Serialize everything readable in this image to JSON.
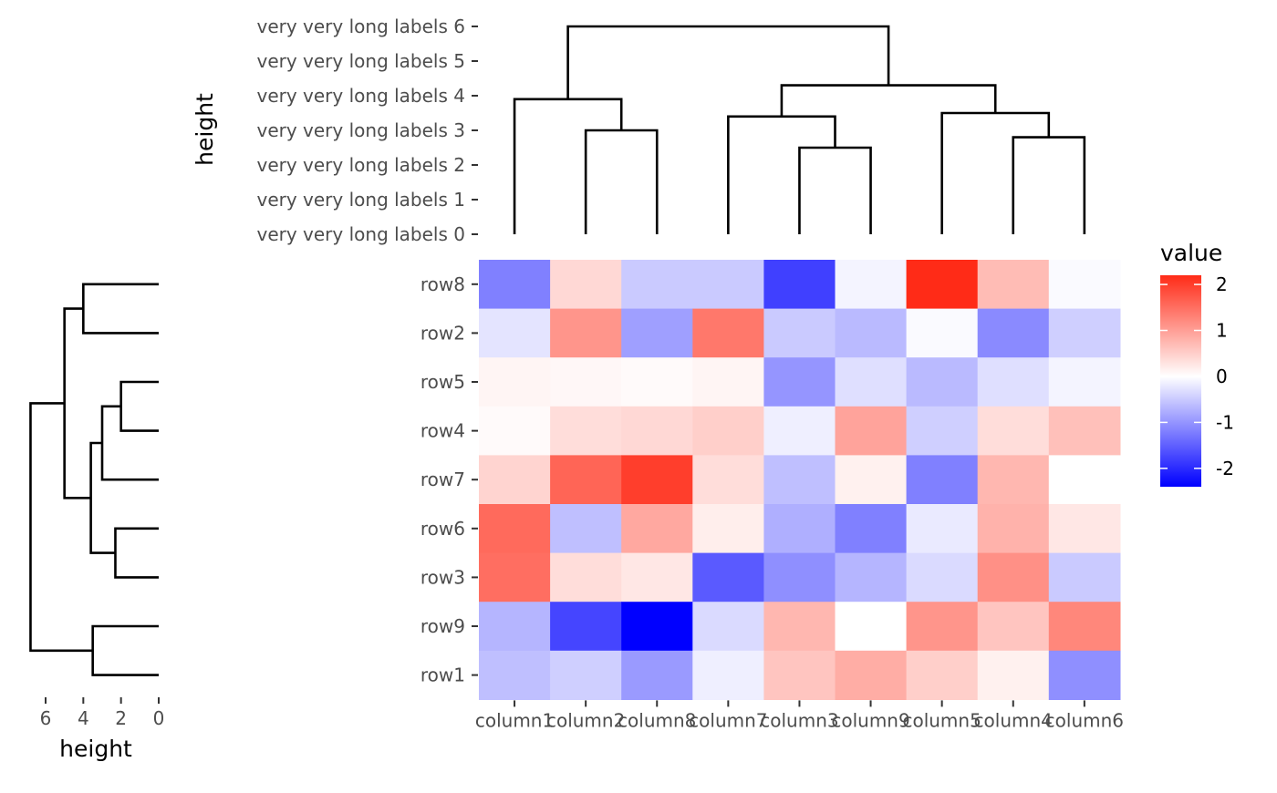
{
  "chart_data": [
    {
      "type": "heatmap",
      "rows": [
        "row8",
        "row2",
        "row5",
        "row4",
        "row7",
        "row6",
        "row3",
        "row9",
        "row1"
      ],
      "columns": [
        "column1",
        "column2",
        "column8",
        "column7",
        "column3",
        "column9",
        "column5",
        "column4",
        "column6"
      ],
      "values": [
        [
          -1.2,
          0.4,
          -0.5,
          -0.5,
          -1.8,
          -0.1,
          2.2,
          0.7,
          -0.05
        ],
        [
          -0.25,
          1.1,
          -0.9,
          1.4,
          -0.5,
          -0.65,
          -0.05,
          -1.1,
          -0.45
        ],
        [
          0.1,
          0.08,
          0.05,
          0.1,
          -1.0,
          -0.3,
          -0.65,
          -0.3,
          -0.1
        ],
        [
          0.05,
          0.35,
          0.4,
          0.5,
          -0.15,
          0.95,
          -0.45,
          0.35,
          0.65
        ],
        [
          0.45,
          1.6,
          2.0,
          0.35,
          -0.6,
          0.15,
          -1.2,
          0.75,
          0.0
        ],
        [
          1.55,
          -0.6,
          0.9,
          0.18,
          -0.75,
          -1.2,
          -0.2,
          0.8,
          0.25
        ],
        [
          1.5,
          0.35,
          0.25,
          -1.55,
          -1.05,
          -0.7,
          -0.35,
          1.15,
          -0.5
        ],
        [
          -0.7,
          -1.75,
          -2.4,
          -0.35,
          0.75,
          0.0,
          1.1,
          0.6,
          1.25
        ],
        [
          -0.6,
          -0.45,
          -0.95,
          -0.15,
          0.6,
          0.85,
          0.5,
          0.15,
          -1.05
        ]
      ],
      "legend": {
        "title": "value",
        "ticks": [
          2,
          1,
          0,
          -1,
          -2
        ],
        "tick_labels": [
          "2",
          "1",
          "0",
          "-1",
          "-2"
        ],
        "range": [
          -2.4,
          2.2
        ],
        "colors": {
          "low": "#0000ff",
          "mid": "#ffffff",
          "high": "#ff2b17"
        },
        "placement": "right"
      },
      "grid": false
    },
    {
      "type": "dendrogram",
      "orientation": "top",
      "leaves": [
        "column1",
        "column2",
        "column8",
        "column7",
        "column3",
        "column9",
        "column5",
        "column4",
        "column6"
      ],
      "ylabel": "height",
      "y_ticks": [
        0,
        1,
        2,
        3,
        4,
        5,
        6
      ],
      "y_tick_labels": [
        "very very long labels 0",
        "very very long labels 1",
        "very very long labels 2",
        "very very long labels 3",
        "very very long labels 4",
        "very very long labels 5",
        "very very long labels 6"
      ],
      "ylim": [
        0,
        6.6
      ],
      "merges": [
        {
          "a": "column4",
          "b": "column6",
          "height": 2.8
        },
        {
          "a": "column3",
          "b": "column9",
          "height": 2.5
        },
        {
          "a": "column2",
          "b": "column8",
          "height": 3.0
        },
        {
          "a": "column7",
          "b": "column3+column9",
          "height": 3.4
        },
        {
          "a": "column5",
          "b": "column4+column6",
          "height": 3.5
        },
        {
          "a": "column1",
          "b": "column2+column8",
          "height": 3.9
        },
        {
          "a": "column7+column3+column9",
          "b": "column5+column4+column6",
          "height": 4.3
        },
        {
          "a": "all-left",
          "b": "all-right",
          "height": 6.0
        }
      ]
    },
    {
      "type": "dendrogram",
      "orientation": "left",
      "leaves": [
        "row8",
        "row2",
        "row5",
        "row4",
        "row7",
        "row6",
        "row3",
        "row9",
        "row1"
      ],
      "xlabel": "height",
      "x_ticks": [
        6,
        4,
        2,
        0
      ],
      "x_tick_labels": [
        "6",
        "4",
        "2",
        "0"
      ],
      "xlim": [
        7.0,
        0
      ],
      "merges": [
        {
          "a": "row5",
          "b": "row4",
          "height": 2.0
        },
        {
          "a": "row6",
          "b": "row3",
          "height": 2.3
        },
        {
          "a": "row5+row4",
          "b": "row7",
          "height": 3.0
        },
        {
          "a": "row9",
          "b": "row1",
          "height": 3.5
        },
        {
          "a": "row5+row4+row7",
          "b": "row6+row3",
          "height": 3.6
        },
        {
          "a": "row8",
          "b": "row2",
          "height": 4.0
        },
        {
          "a": "row8+row2",
          "b": "rest-middle",
          "height": 5.0
        },
        {
          "a": "upper",
          "b": "row9+row1",
          "height": 6.8
        }
      ]
    }
  ]
}
